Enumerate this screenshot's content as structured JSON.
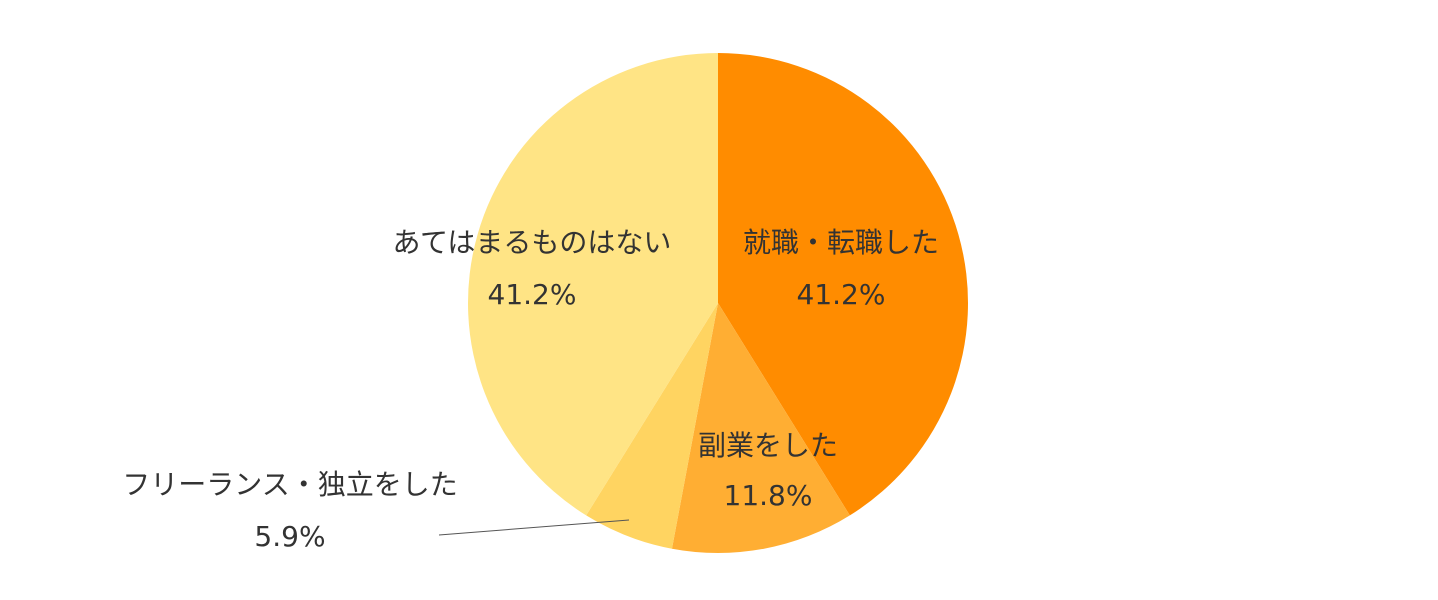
{
  "chart_data": {
    "type": "pie",
    "title": "",
    "start_angle_deg": 0,
    "direction": "clockwise",
    "slices": [
      {
        "label": "就職・転職した",
        "value": 41.2,
        "value_label": "41.2%",
        "color": "#FF8C00"
      },
      {
        "label": "副業をした",
        "value": 11.8,
        "value_label": "11.8%",
        "color": "#FFAE33"
      },
      {
        "label": "フリーランス・独立をした",
        "value": 5.9,
        "value_label": "5.9%",
        "color": "#FFD461"
      },
      {
        "label": "あてはまるものはない",
        "value": 41.2,
        "value_label": "41.2%",
        "color": "#FFE485"
      }
    ]
  }
}
